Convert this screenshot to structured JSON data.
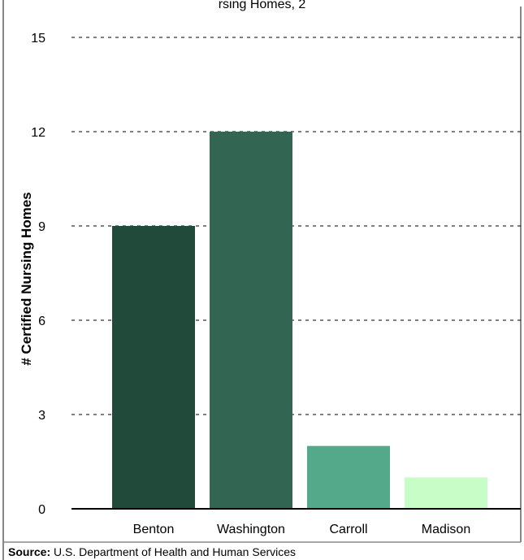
{
  "chart_data": {
    "type": "bar",
    "title": "rsing Homes, 2",
    "ylabel": "# Certified Nursing Homes",
    "xlabel": "",
    "categories": [
      "Benton",
      "Washington",
      "Carroll",
      "Madison"
    ],
    "values": [
      9,
      12,
      2,
      1
    ],
    "colors": [
      "#224a3a",
      "#336553",
      "#55a98b",
      "#c9fdc8"
    ],
    "ylim": [
      0,
      15
    ],
    "yticks": [
      0,
      3,
      6,
      9,
      12,
      15
    ],
    "grid": true
  },
  "source": {
    "label": "Source:",
    "text": " U.S. Department of Health and Human Services"
  }
}
